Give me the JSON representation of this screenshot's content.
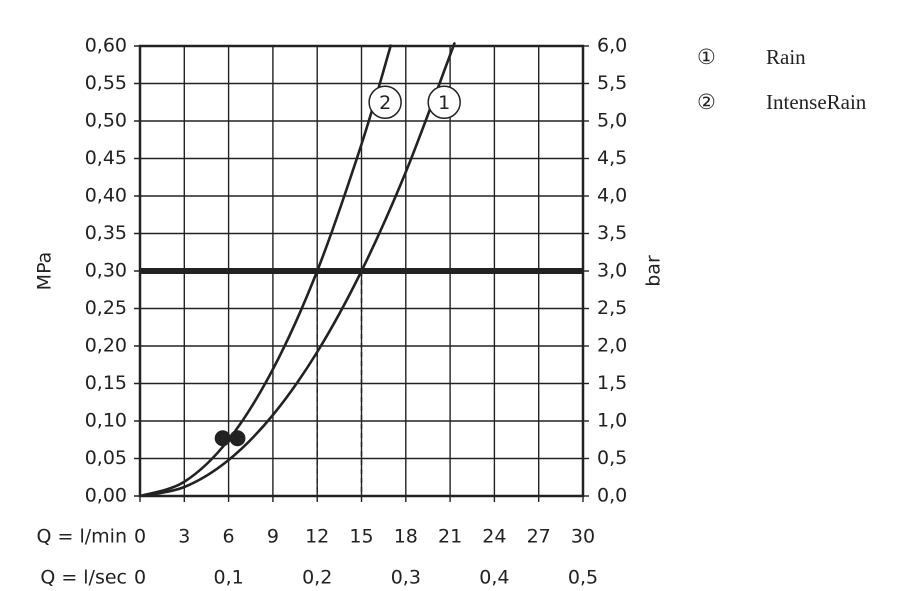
{
  "chart_data": {
    "type": "line",
    "xlabel": "Q = l/min",
    "x2label": "Q = l/sec",
    "ylabel": "MPa",
    "y2label": "bar",
    "xlim": [
      0,
      30
    ],
    "xticks": [
      0,
      3,
      6,
      9,
      12,
      15,
      18,
      21,
      24,
      27,
      30
    ],
    "x2lim": [
      0,
      0.5
    ],
    "x2ticks": [
      0,
      {
        "value": 0.1,
        "label": "0,1"
      },
      {
        "value": 0.2,
        "label": "0,2"
      },
      {
        "value": 0.3,
        "label": "0,3"
      },
      {
        "value": 0.4,
        "label": "0,4"
      },
      {
        "value": 0.5,
        "label": "0,5"
      }
    ],
    "ylim": [
      0,
      0.6
    ],
    "yticks": [
      {
        "value": 0,
        "label": "0,00"
      },
      {
        "value": 0.05,
        "label": "0,05"
      },
      {
        "value": 0.1,
        "label": "0,10"
      },
      {
        "value": 0.15,
        "label": "0,15"
      },
      {
        "value": 0.2,
        "label": "0,20"
      },
      {
        "value": 0.25,
        "label": "0,25"
      },
      {
        "value": 0.3,
        "label": "0,30"
      },
      {
        "value": 0.35,
        "label": "0,35"
      },
      {
        "value": 0.4,
        "label": "0,40"
      },
      {
        "value": 0.45,
        "label": "0,45"
      },
      {
        "value": 0.5,
        "label": "0,50"
      },
      {
        "value": 0.55,
        "label": "0,55"
      },
      {
        "value": 0.6,
        "label": "0,60"
      }
    ],
    "y2lim": [
      0,
      6
    ],
    "y2ticks": [
      {
        "value": 0,
        "label": "0,0"
      },
      {
        "value": 0.5,
        "label": "0,5"
      },
      {
        "value": 1,
        "label": "1,0"
      },
      {
        "value": 1.5,
        "label": "1,5"
      },
      {
        "value": 2,
        "label": "2,0"
      },
      {
        "value": 2.5,
        "label": "2,5"
      },
      {
        "value": 3,
        "label": "3,0"
      },
      {
        "value": 3.5,
        "label": "3,5"
      },
      {
        "value": 4,
        "label": "4,0"
      },
      {
        "value": 4.5,
        "label": "4,5"
      },
      {
        "value": 5,
        "label": "5,0"
      },
      {
        "value": 5.5,
        "label": "5,5"
      },
      {
        "value": 6,
        "label": "6,0"
      }
    ],
    "grid": true,
    "color": "#222222",
    "series": [
      {
        "name": "Rain",
        "marker": "①",
        "label": "1",
        "label_x": 20.6,
        "label_y": 0.525,
        "color": "#222222",
        "x": [
          0,
          3,
          6,
          9,
          12,
          15,
          18,
          21,
          21.2
        ],
        "values": [
          0,
          0.012,
          0.048,
          0.108,
          0.192,
          0.3,
          0.432,
          0.588,
          0.599
        ]
      },
      {
        "name": "IntenseRain",
        "marker": "②",
        "label": "2",
        "label_x": 16.6,
        "label_y": 0.525,
        "color": "#222222",
        "x": [
          0,
          3,
          6,
          9,
          12,
          15,
          17
        ],
        "values": [
          0,
          0.019,
          0.075,
          0.169,
          0.3,
          0.469,
          0.602
        ]
      }
    ],
    "hline": 0.3,
    "dashed_x": [
      12,
      15
    ],
    "points": {
      "x": [
        5.6,
        6.6
      ],
      "values": [
        0.077,
        0.077
      ]
    }
  }
}
